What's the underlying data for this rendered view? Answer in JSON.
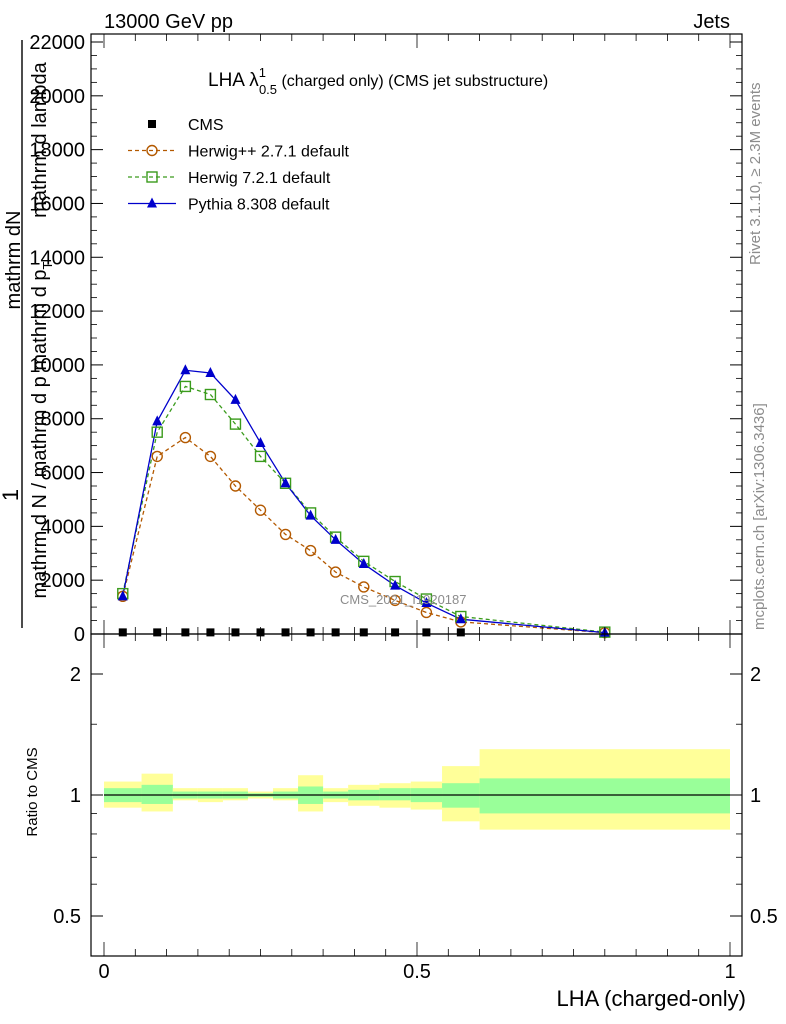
{
  "header": {
    "left": "13000 GeV pp",
    "right": "Jets"
  },
  "side_labels": {
    "rivet": "Rivet 3.1.10, ≥ 2.3M events",
    "mcplots": "mcplots.cern.ch [arXiv:1306.3436]"
  },
  "watermark": "CMS_2021_I1920187",
  "chart_data": [
    {
      "type": "line",
      "title_main": "LHA λ",
      "title_sup": "1",
      "title_sub": "0.5",
      "title_rest": " (charged only) (CMS jet substructure)",
      "ylabel_top": "1",
      "ylabel_num": "mathrm dN",
      "ylabel_den": "mathrm d N / mathrm d p  mathrm d p",
      "ylabel_den_sub": "T",
      "ylabel_frac2": "mathrm d lambda",
      "xlim": [
        0,
        1
      ],
      "ylim": [
        0,
        22000
      ],
      "yticks": [
        "0",
        "2000",
        "4000",
        "6000",
        "8000",
        "10000",
        "12000",
        "14000",
        "16000",
        "18000",
        "20000",
        "22000"
      ],
      "yticks_values": [
        0,
        2000,
        4000,
        6000,
        8000,
        10000,
        12000,
        14000,
        16000,
        18000,
        20000,
        22000
      ],
      "series": [
        {
          "name": "CMS",
          "color": "#000000",
          "marker": "square-filled",
          "x": [
            0.03,
            0.085,
            0.13,
            0.17,
            0.21,
            0.25,
            0.29,
            0.33,
            0.37,
            0.415,
            0.465,
            0.515,
            0.57
          ],
          "y": [
            60,
            60,
            60,
            60,
            60,
            60,
            60,
            60,
            60,
            60,
            60,
            60,
            60
          ]
        },
        {
          "name": "Herwig++ 2.7.1 default",
          "color": "#b35900",
          "marker": "circle-open",
          "dash": "4,3",
          "x": [
            0.03,
            0.085,
            0.13,
            0.17,
            0.21,
            0.25,
            0.29,
            0.33,
            0.37,
            0.415,
            0.465,
            0.515,
            0.57,
            0.8
          ],
          "y": [
            1400,
            6600,
            7300,
            6600,
            5500,
            4600,
            3700,
            3100,
            2300,
            1750,
            1250,
            800,
            450,
            50
          ]
        },
        {
          "name": "Herwig 7.2.1 default",
          "color": "#3a9b1c",
          "marker": "square-open",
          "dash": "4,3",
          "x": [
            0.03,
            0.085,
            0.13,
            0.17,
            0.21,
            0.25,
            0.29,
            0.33,
            0.37,
            0.415,
            0.465,
            0.515,
            0.57,
            0.8
          ],
          "y": [
            1500,
            7500,
            9200,
            8900,
            7800,
            6600,
            5600,
            4500,
            3600,
            2700,
            1950,
            1300,
            650,
            70
          ]
        },
        {
          "name": "Pythia 8.308 default",
          "color": "#0000cc",
          "marker": "triangle-filled",
          "x": [
            0.03,
            0.085,
            0.13,
            0.17,
            0.21,
            0.25,
            0.29,
            0.33,
            0.37,
            0.415,
            0.465,
            0.515,
            0.57,
            0.8
          ],
          "y": [
            1400,
            7900,
            9800,
            9700,
            8700,
            7100,
            5600,
            4400,
            3500,
            2600,
            1800,
            1150,
            550,
            50
          ]
        }
      ]
    },
    {
      "type": "area",
      "ylabel": "Ratio to CMS",
      "xlabel": "LHA (charged-only)",
      "xlim": [
        0,
        1
      ],
      "ylim": [
        0.4,
        2.35
      ],
      "log_y": true,
      "xticks": [
        "0",
        "0.5",
        "1"
      ],
      "xticks_values": [
        0,
        0.5,
        1
      ],
      "yticks": [
        "0.5",
        "1",
        "2"
      ],
      "yticks_values": [
        0.5,
        1,
        2
      ],
      "band_colors": {
        "outer": "#ffff99",
        "inner": "#99ff99"
      },
      "bins": [
        {
          "x0": 0.0,
          "x1": 0.06,
          "inner": [
            0.96,
            1.04
          ],
          "outer": [
            0.93,
            1.08
          ]
        },
        {
          "x0": 0.06,
          "x1": 0.11,
          "inner": [
            0.95,
            1.06
          ],
          "outer": [
            0.91,
            1.13
          ]
        },
        {
          "x0": 0.11,
          "x1": 0.15,
          "inner": [
            0.98,
            1.02
          ],
          "outer": [
            0.97,
            1.04
          ]
        },
        {
          "x0": 0.15,
          "x1": 0.19,
          "inner": [
            0.98,
            1.02
          ],
          "outer": [
            0.96,
            1.04
          ]
        },
        {
          "x0": 0.19,
          "x1": 0.23,
          "inner": [
            0.98,
            1.02
          ],
          "outer": [
            0.97,
            1.04
          ]
        },
        {
          "x0": 0.23,
          "x1": 0.27,
          "inner": [
            0.99,
            1.01
          ],
          "outer": [
            0.98,
            1.02
          ]
        },
        {
          "x0": 0.27,
          "x1": 0.31,
          "inner": [
            0.98,
            1.02
          ],
          "outer": [
            0.97,
            1.04
          ]
        },
        {
          "x0": 0.31,
          "x1": 0.35,
          "inner": [
            0.95,
            1.05
          ],
          "outer": [
            0.91,
            1.12
          ]
        },
        {
          "x0": 0.35,
          "x1": 0.39,
          "inner": [
            0.98,
            1.02
          ],
          "outer": [
            0.96,
            1.04
          ]
        },
        {
          "x0": 0.39,
          "x1": 0.44,
          "inner": [
            0.97,
            1.03
          ],
          "outer": [
            0.94,
            1.06
          ]
        },
        {
          "x0": 0.44,
          "x1": 0.49,
          "inner": [
            0.97,
            1.04
          ],
          "outer": [
            0.93,
            1.07
          ]
        },
        {
          "x0": 0.49,
          "x1": 0.54,
          "inner": [
            0.96,
            1.04
          ],
          "outer": [
            0.92,
            1.08
          ]
        },
        {
          "x0": 0.54,
          "x1": 0.6,
          "inner": [
            0.93,
            1.07
          ],
          "outer": [
            0.86,
            1.18
          ]
        },
        {
          "x0": 0.6,
          "x1": 1.0,
          "inner": [
            0.9,
            1.1
          ],
          "outer": [
            0.82,
            1.3
          ]
        }
      ]
    }
  ]
}
